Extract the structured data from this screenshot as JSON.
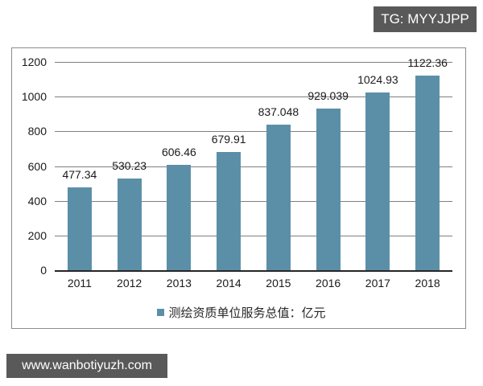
{
  "watermarks": {
    "top": "TG: MYYJJPP",
    "bottom": "www.wanbotiyuzh.com"
  },
  "colors": {
    "bar": "#5b8fa8",
    "gridline": "#7f7f7f",
    "watermark_bg": "#595959"
  },
  "chart_data": {
    "type": "bar",
    "title": "",
    "xlabel": "",
    "ylabel": "",
    "categories": [
      "2011",
      "2012",
      "2013",
      "2014",
      "2015",
      "2016",
      "2017",
      "2018"
    ],
    "series": [
      {
        "name": "测绘资质单位服务总值：亿元",
        "values": [
          477.34,
          530.23,
          606.46,
          679.91,
          837.048,
          929.039,
          1024.93,
          1122.36
        ],
        "labels": [
          "477.34",
          "530.23",
          "606.46",
          "679.91",
          "837.048",
          "929.039",
          "1024.93",
          "1122.36"
        ]
      }
    ],
    "ylim": [
      0,
      1200
    ],
    "yticks": [
      "0",
      "200",
      "400",
      "600",
      "800",
      "1000",
      "1200"
    ],
    "grid": true,
    "legend_position": "bottom"
  }
}
